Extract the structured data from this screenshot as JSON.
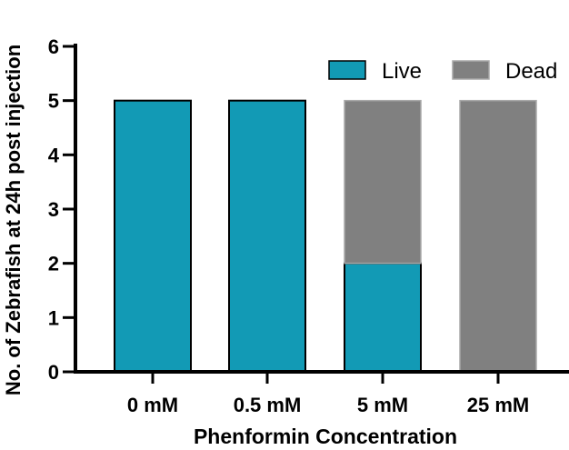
{
  "chart_data": {
    "type": "bar",
    "stacked": true,
    "xlabel": "Phenformin Concentration",
    "ylabel": "No. of Zebrafish at 24h post injection",
    "categories": [
      "0 mM",
      "0.5 mM",
      "5 mM",
      "25 mM"
    ],
    "series": [
      {
        "name": "Live",
        "values": [
          5,
          5,
          2,
          0
        ],
        "color": "#129ab5"
      },
      {
        "name": "Dead",
        "values": [
          0,
          0,
          3,
          5
        ],
        "color": "#808080"
      }
    ],
    "ylim": [
      0,
      6
    ],
    "yticks": [
      "0",
      "1",
      "2",
      "3",
      "4",
      "5",
      "6"
    ],
    "grid": false,
    "legend_position": "top-right"
  }
}
